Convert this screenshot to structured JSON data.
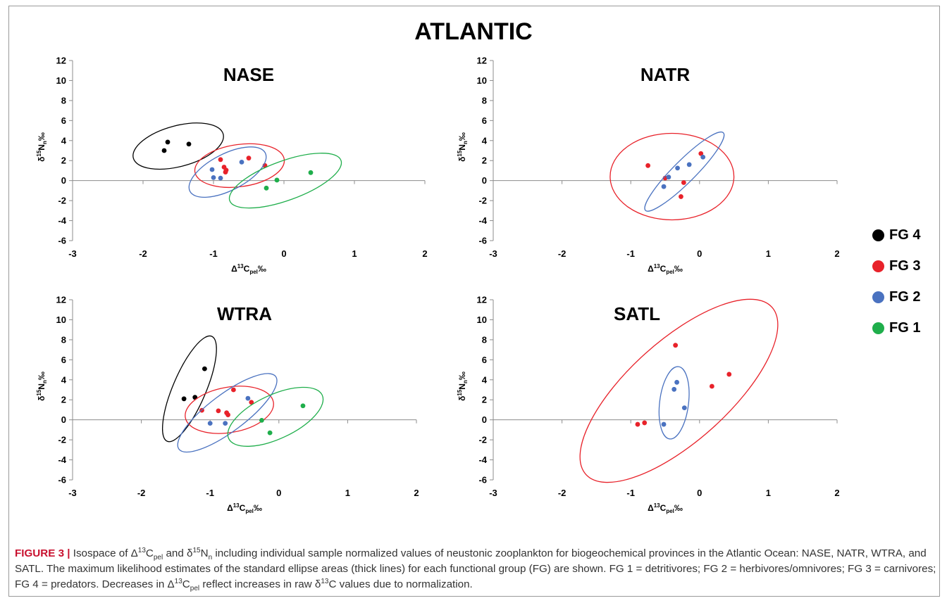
{
  "figure_title": "ATLANTIC",
  "legend": [
    {
      "label": "FG 4",
      "color": "#000000"
    },
    {
      "label": "FG 3",
      "color": "#e8222a"
    },
    {
      "label": "FG 2",
      "color": "#4a72c0"
    },
    {
      "label": "FG 1",
      "color": "#1fae4b"
    }
  ],
  "caption": {
    "label": "FIGURE 3 |",
    "text_a": " Isospace of Δ",
    "sup_13": "13",
    "c_sym": "C",
    "sub_pel": "pel",
    "text_and": " and δ",
    "sup_15": "15",
    "n_sym": "N",
    "sub_n": "n",
    "text_b": " including individual sample normalized values of neustonic zooplankton for biogeochemical provinces in the Atlantic Ocean: NASE, NATR, WTRA, and SATL. The maximum likelihood estimates of the standard ellipse areas (thick lines) for each functional group (FG) are shown. FG 1 = detritivores; FG 2 = herbivores/omnivores; FG 3 = carnivores; FG 4 = predators. Decreases in Δ",
    "text_c": " reflect increases in raw δ",
    "text_d": "C values due to normalization."
  },
  "chart_data": [
    {
      "type": "scatter",
      "title": "NASE",
      "xlabel": "Δ13Cpel‰",
      "ylabel": "δ15Nn‰",
      "xlim": [
        -3,
        2
      ],
      "ylim": [
        -6,
        12
      ],
      "xticks": [
        -3,
        -2,
        -1,
        0,
        1,
        2
      ],
      "yticks": [
        -6,
        -4,
        -2,
        0,
        2,
        4,
        6,
        8,
        10,
        12
      ],
      "series": [
        {
          "name": "FG 4",
          "color": "#000000",
          "points": [
            [
              -1.7,
              3.0
            ],
            [
              -1.65,
              3.85
            ],
            [
              -1.35,
              3.65
            ]
          ],
          "ellipse": {
            "cx": -1.5,
            "cy": 3.45,
            "rx": 0.66,
            "ry": 0.29,
            "angle": 15
          }
        },
        {
          "name": "FG 3",
          "color": "#e8222a",
          "points": [
            [
              -0.9,
              2.1
            ],
            [
              -0.85,
              1.35
            ],
            [
              -0.83,
              0.85
            ],
            [
              -0.82,
              1.05
            ],
            [
              -0.5,
              2.25
            ],
            [
              -0.27,
              1.5
            ]
          ],
          "ellipse": {
            "cx": -0.63,
            "cy": 1.5,
            "rx": 0.64,
            "ry": 0.3,
            "angle": 8
          }
        },
        {
          "name": "FG 2",
          "color": "#4a72c0",
          "points": [
            [
              -1.02,
              1.1
            ],
            [
              -1.0,
              0.3
            ],
            [
              -0.9,
              0.25
            ],
            [
              -0.6,
              1.85
            ]
          ],
          "ellipse": {
            "cx": -0.8,
            "cy": 0.85,
            "rx": 0.6,
            "ry": 0.26,
            "angle": 27
          }
        },
        {
          "name": "FG 1",
          "color": "#1fae4b",
          "points": [
            [
              -0.25,
              -0.75
            ],
            [
              -0.1,
              0.05
            ],
            [
              0.38,
              0.8
            ]
          ],
          "ellipse": {
            "cx": 0.02,
            "cy": 0.0,
            "rx": 0.84,
            "ry": 0.28,
            "angle": 20
          }
        }
      ]
    },
    {
      "type": "scatter",
      "title": "NATR",
      "xlabel": "Δ13Cpel‰",
      "ylabel": "δ15Nn‰",
      "xlim": [
        -3,
        2
      ],
      "ylim": [
        -6,
        12
      ],
      "xticks": [
        -3,
        -2,
        -1,
        0,
        1,
        2
      ],
      "yticks": [
        -6,
        -4,
        -2,
        0,
        2,
        4,
        6,
        8,
        10,
        12
      ],
      "series": [
        {
          "name": "FG 3",
          "color": "#e8222a",
          "points": [
            [
              -0.75,
              1.5
            ],
            [
              -0.5,
              0.25
            ],
            [
              -0.27,
              -1.6
            ],
            [
              -0.23,
              -0.2
            ],
            [
              0.02,
              2.7
            ]
          ],
          "ellipse": {
            "cx": -0.4,
            "cy": 0.4,
            "rx": 0.9,
            "ry": 0.63,
            "angle": 0
          }
        },
        {
          "name": "FG 2",
          "color": "#4a72c0",
          "points": [
            [
              -0.52,
              -0.6
            ],
            [
              -0.45,
              0.35
            ],
            [
              -0.32,
              1.25
            ],
            [
              -0.15,
              1.6
            ],
            [
              0.05,
              2.35
            ]
          ],
          "ellipse": {
            "cx": -0.22,
            "cy": 0.9,
            "rx": 0.8,
            "ry": 0.16,
            "angle": 45
          }
        }
      ]
    },
    {
      "type": "scatter",
      "title": "WTRA",
      "xlabel": "Δ13Cpel‰",
      "ylabel": "δ15Nn‰",
      "xlim": [
        -3,
        2
      ],
      "ylim": [
        -6,
        12
      ],
      "xticks": [
        -3,
        -2,
        -1,
        0,
        1,
        2
      ],
      "yticks": [
        -6,
        -4,
        -2,
        0,
        2,
        4,
        6,
        8,
        10,
        12
      ],
      "series": [
        {
          "name": "FG 4",
          "color": "#000000",
          "points": [
            [
              -1.38,
              2.1
            ],
            [
              -1.22,
              2.25
            ],
            [
              -1.08,
              5.1
            ]
          ],
          "ellipse": {
            "cx": -1.3,
            "cy": 3.1,
            "rx": 0.83,
            "ry": 0.24,
            "angle": 67
          }
        },
        {
          "name": "FG 3",
          "color": "#e8222a",
          "points": [
            [
              -1.12,
              0.95
            ],
            [
              -0.88,
              0.9
            ],
            [
              -0.76,
              0.7
            ],
            [
              -0.74,
              0.5
            ],
            [
              -0.66,
              3.0
            ],
            [
              -0.4,
              1.75
            ]
          ],
          "ellipse": {
            "cx": -0.72,
            "cy": 1.0,
            "rx": 0.65,
            "ry": 0.33,
            "angle": 10
          }
        },
        {
          "name": "FG 2",
          "color": "#4a72c0",
          "points": [
            [
              -1.0,
              -0.35
            ],
            [
              -0.78,
              -0.35
            ],
            [
              -0.45,
              2.15
            ]
          ],
          "ellipse": {
            "cx": -0.75,
            "cy": 0.7,
            "rx": 0.88,
            "ry": 0.27,
            "angle": 37
          }
        },
        {
          "name": "FG 1",
          "color": "#1fae4b",
          "points": [
            [
              -0.25,
              -0.05
            ],
            [
              -0.13,
              -1.3
            ],
            [
              0.35,
              1.4
            ]
          ],
          "ellipse": {
            "cx": -0.05,
            "cy": 0.3,
            "rx": 0.75,
            "ry": 0.32,
            "angle": 25
          }
        }
      ]
    },
    {
      "type": "scatter",
      "title": "SATL",
      "xlabel": "Δ13Cpel‰",
      "ylabel": "δ15Nn‰",
      "xlim": [
        -3,
        2
      ],
      "ylim": [
        -6,
        12
      ],
      "xticks": [
        -3,
        -2,
        -1,
        0,
        1,
        2
      ],
      "yticks": [
        -6,
        -4,
        -2,
        0,
        2,
        4,
        6,
        8,
        10,
        12
      ],
      "series": [
        {
          "name": "FG 3",
          "color": "#e8222a",
          "points": [
            [
              -0.9,
              -0.45
            ],
            [
              -0.8,
              -0.3
            ],
            [
              -0.35,
              7.45
            ],
            [
              0.18,
              3.35
            ],
            [
              0.43,
              4.55
            ]
          ],
          "ellipse": {
            "cx": -0.3,
            "cy": 2.9,
            "rx": 1.82,
            "ry": 0.73,
            "angle": 42
          }
        },
        {
          "name": "FG 2",
          "color": "#4a72c0",
          "points": [
            [
              -0.52,
              -0.45
            ],
            [
              -0.37,
              3.05
            ],
            [
              -0.33,
              3.75
            ],
            [
              -0.22,
              1.2
            ]
          ],
          "ellipse": {
            "cx": -0.37,
            "cy": 1.7,
            "rx": 0.53,
            "ry": 0.21,
            "angle": 83
          }
        }
      ]
    }
  ]
}
